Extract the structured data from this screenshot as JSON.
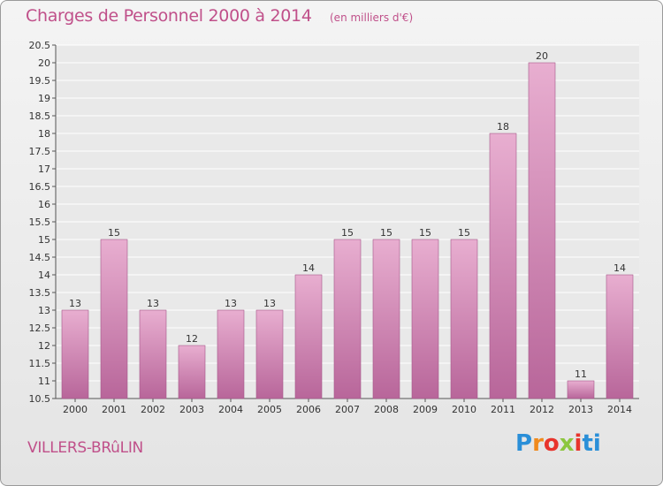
{
  "header": {
    "title": "Charges de Personnel 2000 à 2014",
    "unit": "(en milliers d'€)"
  },
  "footer": {
    "commune": "VILLERS-BRûLIN",
    "logo_letters": [
      "P",
      "r",
      "o",
      "x",
      "i",
      "ti"
    ]
  },
  "colors": {
    "bar_top": "#e8aed0",
    "bar_bottom": "#b8669a",
    "text_accent": "#c0508a",
    "grid": "#ffffff"
  },
  "chart_data": {
    "type": "bar",
    "title": "Charges de Personnel 2000 à 2014",
    "subtitle": "(en milliers d'€)",
    "categories": [
      "2000",
      "2001",
      "2002",
      "2003",
      "2004",
      "2005",
      "2006",
      "2007",
      "2008",
      "2009",
      "2010",
      "2011",
      "2012",
      "2013",
      "2014"
    ],
    "values": [
      13,
      15,
      13,
      12,
      13,
      13,
      14,
      15,
      15,
      15,
      15,
      18,
      20,
      11,
      14
    ],
    "ylim": [
      10.5,
      20.5
    ],
    "ytick_step": 0.5,
    "yticks": [
      "10.5",
      "11",
      "11.5",
      "12",
      "12.5",
      "13",
      "13.5",
      "14",
      "14.5",
      "15",
      "15.5",
      "16",
      "16.5",
      "17",
      "17.5",
      "18",
      "18.5",
      "19",
      "19.5",
      "20",
      "20.5"
    ],
    "grid": true,
    "legend": "none"
  }
}
